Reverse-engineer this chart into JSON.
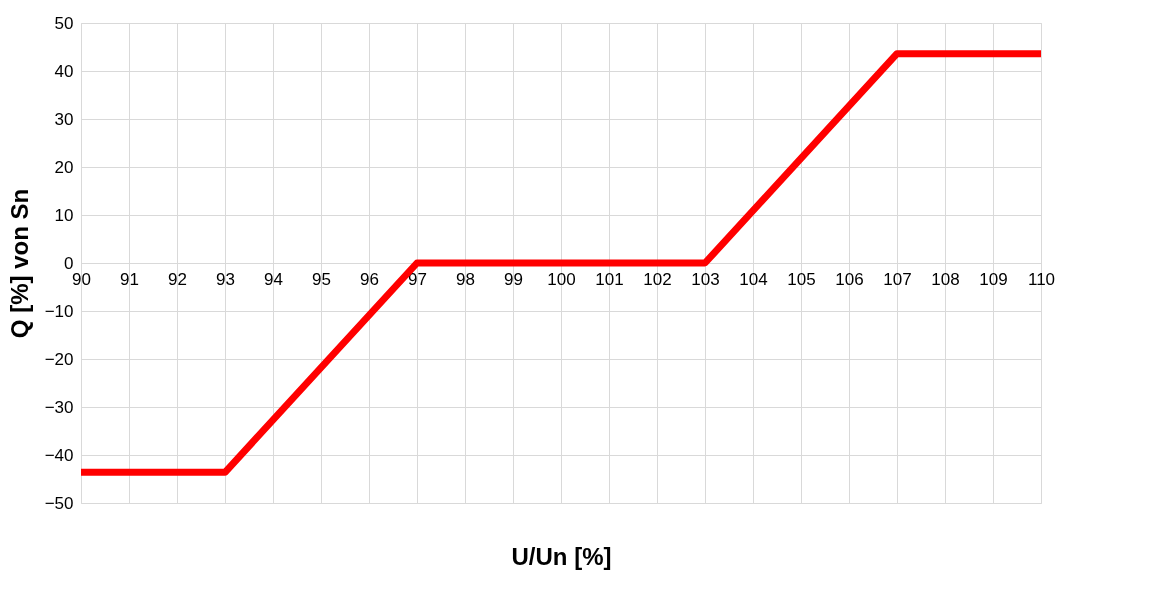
{
  "chart_data": {
    "type": "line",
    "xlabel": "U/Un [%]",
    "ylabel": "Q [%] von Sn",
    "x": [
      90,
      93,
      97,
      103,
      107,
      110
    ],
    "series": [
      {
        "color": "#ff0000",
        "values": [
          -43.6,
          -43.6,
          0,
          0,
          43.6,
          43.6
        ]
      }
    ],
    "xlim": [
      90,
      110
    ],
    "xticks": [
      90,
      91,
      92,
      93,
      94,
      95,
      96,
      97,
      98,
      99,
      100,
      101,
      102,
      103,
      104,
      105,
      106,
      107,
      108,
      109,
      110
    ],
    "ylim": [
      -50,
      50
    ],
    "yticks": [
      -50,
      -40,
      -30,
      -20,
      -10,
      0,
      10,
      20,
      30,
      40,
      50
    ],
    "grid": true,
    "line_style": "solid"
  }
}
